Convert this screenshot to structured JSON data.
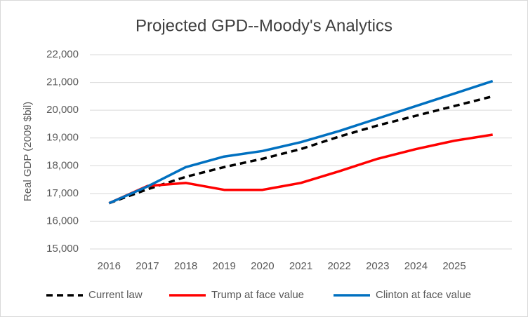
{
  "chart_data": {
    "type": "line",
    "title": "Projected GPD--Moody's Analytics",
    "y_label": "Real GDP (2009 $bil)",
    "categories": [
      "2016",
      "2017",
      "2018",
      "2019",
      "2020",
      "2021",
      "2022",
      "2023",
      "2024",
      "2025",
      null
    ],
    "series": [
      {
        "name": "Current law",
        "color": "#000000",
        "dashed": true,
        "values": [
          16650,
          17150,
          17600,
          17950,
          18250,
          18600,
          19050,
          19450,
          19800,
          20150,
          20500
        ]
      },
      {
        "name": "Trump at face value",
        "color": "#ff0000",
        "dashed": false,
        "values": [
          16650,
          17270,
          17380,
          17130,
          17130,
          17380,
          17800,
          18250,
          18600,
          18900,
          19120
        ]
      },
      {
        "name": "Clinton at face value",
        "color": "#0070c0",
        "dashed": false,
        "values": [
          16650,
          17250,
          17950,
          18330,
          18530,
          18850,
          19250,
          19700,
          20150,
          20600,
          21050
        ]
      }
    ],
    "ylim": [
      15000,
      22000
    ],
    "yticks": [
      {
        "value": 15000,
        "label": "15,000"
      },
      {
        "value": 16000,
        "label": "16,000"
      },
      {
        "value": 17000,
        "label": "17,000"
      },
      {
        "value": 18000,
        "label": "18,000"
      },
      {
        "value": 19000,
        "label": "19,000"
      },
      {
        "value": 20000,
        "label": "20,000"
      },
      {
        "value": 21000,
        "label": "21,000"
      },
      {
        "value": 22000,
        "label": "22,000"
      }
    ],
    "grid": true,
    "legend": "bottom"
  }
}
